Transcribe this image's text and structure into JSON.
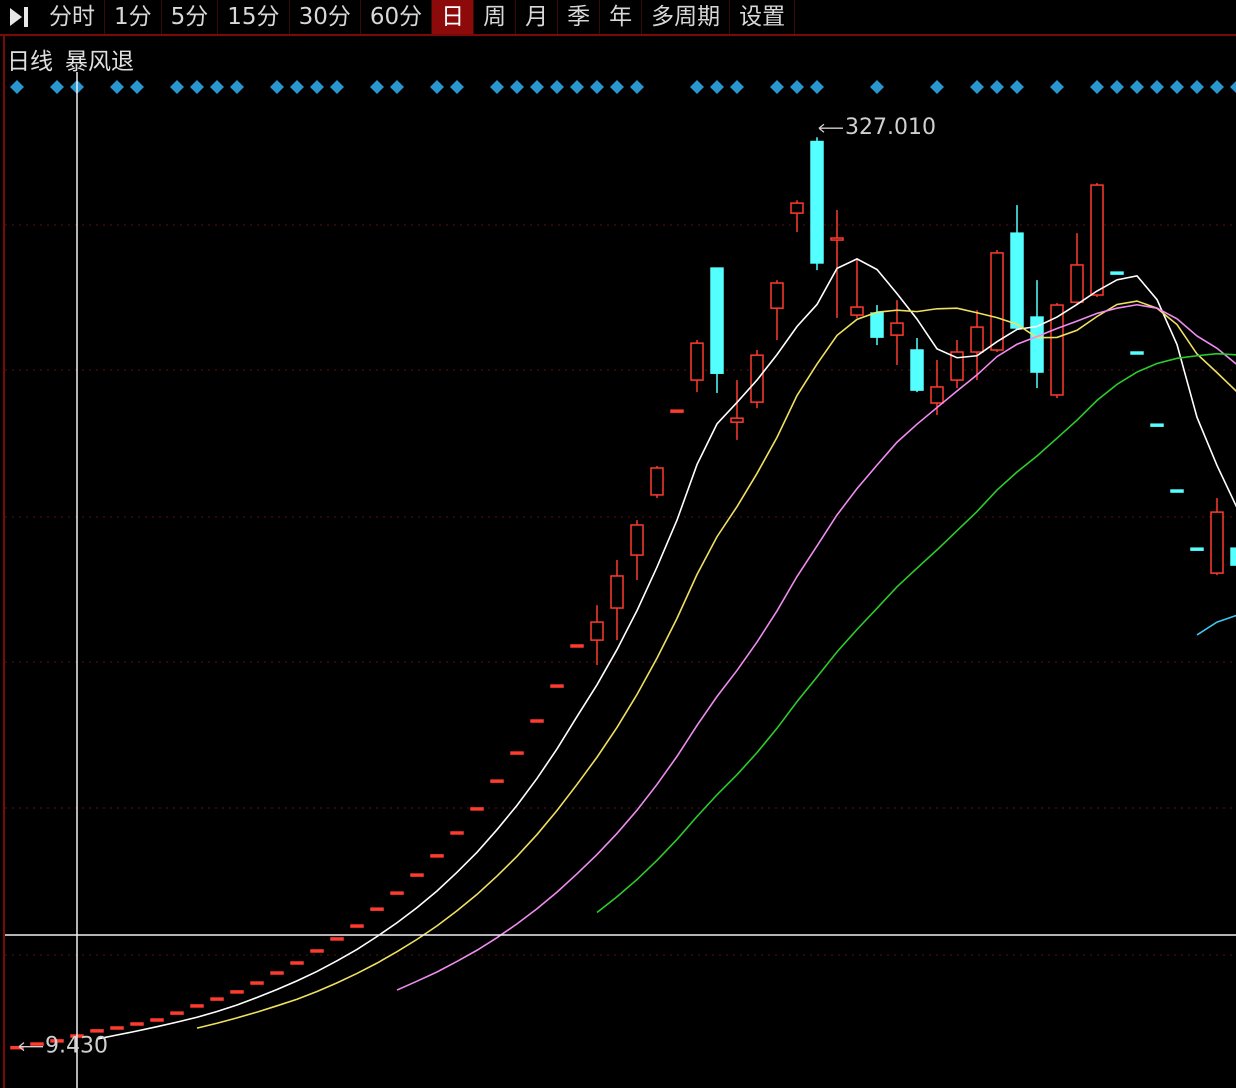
{
  "toolbar": {
    "tabs": [
      "分时",
      "1分",
      "5分",
      "15分",
      "30分",
      "60分",
      "日",
      "周",
      "月",
      "季",
      "年",
      "多周期",
      "设置"
    ],
    "selected": 6
  },
  "header": {
    "period": "日线",
    "indicator": "暴风退"
  },
  "chart_data": {
    "type": "candlestick",
    "up_color": "#ff3a2e",
    "down_color": "#54ffff",
    "ylim": [
      -5,
      340
    ],
    "open": [
      9.43,
      10.7,
      11.8,
      13.5,
      15.3,
      16.3,
      17.7,
      19.1,
      21.5,
      24.0,
      26.4,
      28.9,
      32.0,
      35.5,
      39.0,
      43.2,
      47.4,
      51.9,
      57.8,
      63.4,
      69.7,
      76.4,
      84.4,
      92.8,
      102.5,
      112.3,
      123.5,
      135.7,
      149.7,
      151.4,
      162.6,
      181.1,
      202.1,
      231.7,
      242.2,
      281.3,
      227.5,
      234.5,
      267.3,
      300.5,
      325.5,
      291.1,
      264.9,
      265.6,
      257.9,
      252.7,
      234.2,
      242.2,
      252.0,
      252.7,
      293.5,
      264.2,
      237.0,
      269.4,
      271.9,
      279.9,
      252.0,
      226.8,
      203.8,
      183.5,
      174.8,
      183.5
    ],
    "high": [
      9.43,
      10.7,
      11.8,
      13.5,
      15.3,
      16.3,
      17.7,
      19.1,
      21.5,
      24.0,
      26.4,
      28.9,
      32.0,
      35.5,
      39.0,
      43.2,
      47.4,
      51.9,
      57.8,
      63.4,
      69.7,
      76.4,
      84.4,
      92.8,
      102.5,
      112.3,
      123.5,
      135.7,
      149.7,
      163.6,
      179.4,
      193.3,
      212.2,
      231.7,
      256.2,
      281.3,
      242.2,
      252.7,
      277.1,
      305.0,
      327.01,
      301.6,
      284.8,
      268.4,
      270.1,
      256.9,
      249.2,
      256.2,
      266.6,
      287.6,
      303.3,
      277.1,
      269.1,
      293.5,
      311.0,
      279.9,
      252.0,
      226.8,
      203.8,
      183.5,
      201.0,
      183.5
    ],
    "low": [
      9.43,
      10.7,
      11.8,
      13.5,
      15.3,
      16.3,
      17.7,
      19.1,
      21.5,
      24.0,
      26.4,
      28.9,
      32.0,
      35.5,
      39.0,
      43.2,
      47.4,
      51.9,
      57.8,
      63.4,
      69.7,
      76.4,
      84.4,
      92.8,
      102.5,
      112.3,
      123.5,
      135.7,
      149.7,
      142.7,
      151.4,
      172.4,
      201.0,
      231.7,
      238.0,
      237.7,
      221.3,
      232.4,
      256.2,
      293.9,
      280.6,
      263.9,
      263.9,
      254.4,
      247.5,
      238.0,
      230.0,
      239.4,
      242.2,
      252.0,
      259.7,
      239.4,
      235.9,
      268.4,
      271.2,
      279.9,
      252.0,
      226.8,
      203.8,
      183.5,
      174.1,
      177.6
    ],
    "close": [
      9.43,
      10.7,
      11.8,
      13.5,
      15.3,
      16.3,
      17.7,
      19.1,
      21.5,
      24.0,
      26.4,
      28.9,
      32.0,
      35.5,
      39.0,
      43.2,
      47.4,
      51.9,
      57.8,
      63.4,
      69.7,
      76.4,
      84.4,
      92.8,
      102.5,
      112.3,
      123.5,
      135.7,
      149.7,
      157.7,
      173.8,
      191.6,
      211.5,
      231.7,
      255.1,
      244.6,
      228.9,
      250.9,
      276.1,
      304.0,
      283.1,
      291.8,
      267.7,
      257.2,
      262.1,
      238.7,
      239.8,
      252.0,
      260.7,
      286.6,
      260.4,
      245.0,
      268.4,
      282.4,
      310.3,
      279.9,
      252.0,
      226.8,
      203.8,
      183.5,
      196.1,
      177.6
    ],
    "moving_averages": [
      {
        "color": "#ffffff",
        "values": [
          null,
          null,
          null,
          null,
          12.1,
          13.5,
          14.9,
          16.4,
          18.0,
          19.7,
          21.7,
          24.0,
          26.6,
          29.4,
          32.4,
          35.7,
          39.4,
          43.4,
          47.9,
          52.7,
          58.0,
          63.8,
          70.3,
          77.3,
          85.2,
          93.7,
          103.1,
          113.4,
          124.7,
          135.8,
          148.1,
          161.7,
          176.9,
          193.3,
          212.7,
          226.9,
          234.4,
          242.2,
          251.1,
          260.9,
          268.6,
          281.2,
          284.5,
          280.8,
          272.4,
          263.5,
          253.1,
          250.0,
          250.7,
          255.6,
          259.9,
          260.9,
          264.2,
          268.6,
          273.3,
          277.2,
          278.6,
          270.3,
          254.6,
          229.2,
          212.4,
          197.6
        ]
      },
      {
        "color": "#f0e060",
        "values": [
          null,
          null,
          null,
          null,
          null,
          null,
          null,
          null,
          null,
          15.9,
          17.6,
          19.5,
          21.5,
          23.7,
          26.0,
          28.7,
          31.7,
          35.0,
          38.6,
          42.6,
          46.9,
          51.6,
          56.9,
          62.6,
          69.0,
          75.9,
          83.5,
          91.9,
          101.0,
          110.5,
          120.9,
          132.4,
          145.1,
          159.0,
          174.3,
          187.5,
          198.0,
          209.6,
          222.2,
          236.8,
          247.8,
          257.8,
          263.4,
          265.9,
          266.6,
          266.1,
          267.1,
          267.3,
          265.7,
          264.0,
          261.7,
          257.0,
          257.1,
          259.6,
          264.4,
          268.6,
          269.8,
          267.3,
          261.6,
          251.3,
          244.8,
          238.1
        ]
      },
      {
        "color": "#f08cf0",
        "values": [
          null,
          null,
          null,
          null,
          null,
          null,
          null,
          null,
          null,
          null,
          null,
          null,
          null,
          null,
          null,
          null,
          null,
          null,
          null,
          29.2,
          32.3,
          35.5,
          39.2,
          43.1,
          47.5,
          52.3,
          57.6,
          63.4,
          69.8,
          76.5,
          83.9,
          92.0,
          101.0,
          110.8,
          121.6,
          131.7,
          140.8,
          150.7,
          161.6,
          173.6,
          184.3,
          195.1,
          204.3,
          212.5,
          220.5,
          226.8,
          232.6,
          238.4,
          244.0,
          250.4,
          254.7,
          257.4,
          260.2,
          262.8,
          265.5,
          267.3,
          268.5,
          267.3,
          263.6,
          257.6,
          253.3,
          247.6
        ]
      },
      {
        "color": "#2ccc2c",
        "values": [
          null,
          null,
          null,
          null,
          null,
          null,
          null,
          null,
          null,
          null,
          null,
          null,
          null,
          null,
          null,
          null,
          null,
          null,
          null,
          null,
          null,
          null,
          null,
          null,
          null,
          null,
          null,
          null,
          null,
          56.3,
          61.8,
          67.8,
          74.5,
          81.8,
          89.8,
          97.4,
          104.4,
          112.1,
          120.6,
          129.9,
          138.5,
          147.3,
          155.1,
          162.5,
          170.0,
          176.5,
          182.9,
          189.6,
          196.3,
          203.8,
          210.1,
          215.7,
          221.9,
          228.2,
          235.1,
          240.7,
          245.0,
          248.0,
          249.8,
          250.7,
          251.4,
          251.0
        ]
      },
      {
        "color": "#3cc8f0",
        "values": [
          null,
          null,
          null,
          null,
          null,
          null,
          null,
          null,
          null,
          null,
          null,
          null,
          null,
          null,
          null,
          null,
          null,
          null,
          null,
          null,
          null,
          null,
          null,
          null,
          null,
          null,
          null,
          null,
          null,
          null,
          null,
          null,
          null,
          null,
          null,
          null,
          null,
          null,
          null,
          null,
          null,
          null,
          null,
          null,
          null,
          null,
          null,
          null,
          null,
          null,
          null,
          null,
          null,
          null,
          null,
          null,
          null,
          null,
          null,
          153.2,
          157.7,
          160.1
        ]
      }
    ],
    "annotations": [
      {
        "text": "327.010",
        "value": 327.01,
        "at": "high"
      },
      {
        "text": "9.430",
        "value": 9.43,
        "at": "low"
      }
    ]
  }
}
